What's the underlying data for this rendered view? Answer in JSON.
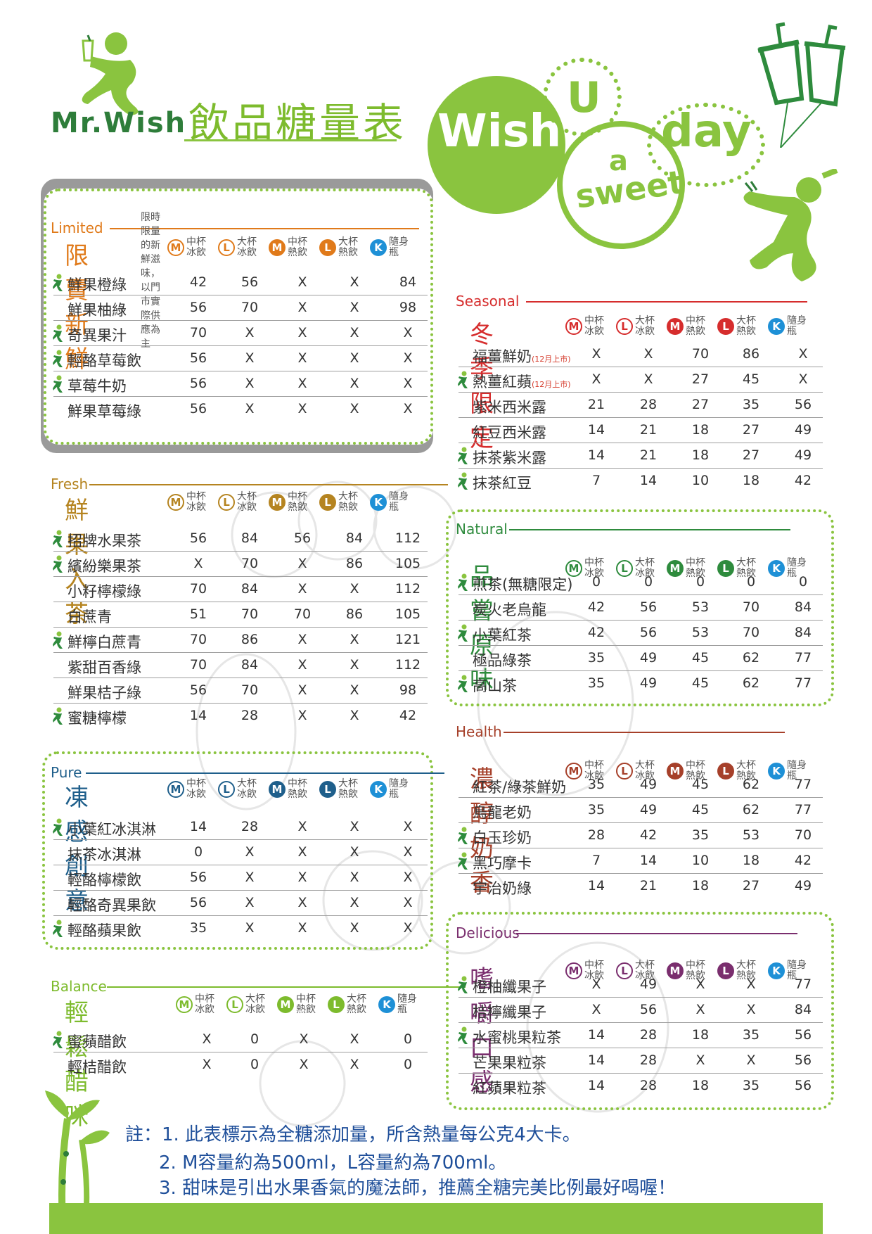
{
  "brand": {
    "logo_text": "Mr.Wish",
    "title": "飲品糖量表"
  },
  "slogan": {
    "wish": "Wish",
    "u": "U",
    "a": "a",
    "sweet": "sweet",
    "day": "day"
  },
  "headers": [
    {
      "badge": "M",
      "line1": "中杯",
      "line2": "冰飲",
      "kind": "outline"
    },
    {
      "badge": "L",
      "line1": "大杯",
      "line2": "冰飲",
      "kind": "outline"
    },
    {
      "badge": "M",
      "line1": "中杯",
      "line2": "熱飲",
      "kind": "solid"
    },
    {
      "badge": "L",
      "line1": "大杯",
      "line2": "熱飲",
      "kind": "solid"
    },
    {
      "badge": "K",
      "line1": "隨身",
      "line2": "瓶",
      "kind": "bottle"
    }
  ],
  "sections": {
    "limited": {
      "en": "Limited",
      "zh": "限賣新鮮",
      "note": "限時限量的新鮮滋味，以門市實際供應為主",
      "color": "#e07a1a",
      "hot_color": "#e07a1a",
      "rows": [
        {
          "name": "鮮果橙綠",
          "leaf": true,
          "values": [
            "42",
            "56",
            "X",
            "X",
            "84"
          ]
        },
        {
          "name": "鮮果柚綠",
          "leaf": false,
          "values": [
            "56",
            "70",
            "X",
            "X",
            "98"
          ]
        },
        {
          "name": "奇異果汁",
          "leaf": true,
          "values": [
            "70",
            "X",
            "X",
            "X",
            "X"
          ]
        },
        {
          "name": "輕酪草莓飲",
          "leaf": true,
          "values": [
            "56",
            "X",
            "X",
            "X",
            "X"
          ]
        },
        {
          "name": "草莓牛奶",
          "leaf": true,
          "values": [
            "56",
            "X",
            "X",
            "X",
            "X"
          ]
        },
        {
          "name": "鮮果草莓綠",
          "leaf": false,
          "values": [
            "56",
            "X",
            "X",
            "X",
            "X"
          ]
        }
      ]
    },
    "fresh": {
      "en": "Fresh",
      "zh": "鮮果入茶",
      "color": "#b58420",
      "hot_color": "#b58420",
      "rows": [
        {
          "name": "招牌水果茶",
          "leaf": true,
          "values": [
            "56",
            "84",
            "56",
            "84",
            "112"
          ]
        },
        {
          "name": "繽紛樂果茶",
          "leaf": true,
          "values": [
            "X",
            "70",
            "X",
            "86",
            "105"
          ]
        },
        {
          "name": "小籽檸檬綠",
          "leaf": false,
          "values": [
            "70",
            "84",
            "X",
            "X",
            "112"
          ]
        },
        {
          "name": "白蔗青",
          "leaf": false,
          "values": [
            "51",
            "70",
            "70",
            "86",
            "105"
          ]
        },
        {
          "name": "鮮檸白蔗青",
          "leaf": true,
          "values": [
            "70",
            "86",
            "X",
            "X",
            "121"
          ]
        },
        {
          "name": "紫甜百香綠",
          "leaf": false,
          "values": [
            "70",
            "84",
            "X",
            "X",
            "112"
          ]
        },
        {
          "name": "鮮果桔子綠",
          "leaf": false,
          "values": [
            "56",
            "70",
            "X",
            "X",
            "98"
          ]
        },
        {
          "name": "蜜糖檸檬",
          "leaf": true,
          "values": [
            "14",
            "28",
            "X",
            "X",
            "42"
          ]
        }
      ]
    },
    "pure": {
      "en": "Pure",
      "zh": "凍感創意",
      "color": "#1f5f8b",
      "hot_color": "#1f5f8b",
      "rows": [
        {
          "name": "小葉紅冰淇淋",
          "leaf": true,
          "values": [
            "14",
            "28",
            "X",
            "X",
            "X"
          ]
        },
        {
          "name": "抹茶冰淇淋",
          "leaf": false,
          "values": [
            "0",
            "X",
            "X",
            "X",
            "X"
          ]
        },
        {
          "name": "輕酪檸檬飲",
          "leaf": false,
          "values": [
            "56",
            "X",
            "X",
            "X",
            "X"
          ]
        },
        {
          "name": "輕酪奇異果飲",
          "leaf": false,
          "values": [
            "56",
            "X",
            "X",
            "X",
            "X"
          ]
        },
        {
          "name": "輕酪蘋果飲",
          "leaf": true,
          "values": [
            "35",
            "X",
            "X",
            "X",
            "X"
          ]
        }
      ]
    },
    "balance": {
      "en": "Balance",
      "zh": "輕鬆醋咪",
      "color": "#7dbb2d",
      "hot_color": "#7dbb2d",
      "rows": [
        {
          "name": "蜜蘋醋飲",
          "leaf": true,
          "values": [
            "X",
            "0",
            "X",
            "X",
            "0"
          ]
        },
        {
          "name": "輕桔醋飲",
          "leaf": false,
          "values": [
            "X",
            "0",
            "X",
            "X",
            "0"
          ]
        }
      ]
    },
    "seasonal": {
      "en": "Seasonal",
      "zh": "冬季限定",
      "color": "#d62d2d",
      "hot_color": "#d62d2d",
      "rows": [
        {
          "name": "福薑鮮奶",
          "tag": "(12月上市)",
          "leaf": false,
          "values": [
            "X",
            "X",
            "70",
            "86",
            "X"
          ]
        },
        {
          "name": "熱薑紅蘋",
          "tag": "(12月上市)",
          "leaf": true,
          "values": [
            "X",
            "X",
            "27",
            "45",
            "X"
          ]
        },
        {
          "name": "紫米西米露",
          "leaf": false,
          "values": [
            "21",
            "28",
            "27",
            "35",
            "56"
          ]
        },
        {
          "name": "紅豆西米露",
          "leaf": false,
          "values": [
            "14",
            "21",
            "18",
            "27",
            "49"
          ]
        },
        {
          "name": "抹茶紫米露",
          "leaf": true,
          "values": [
            "14",
            "21",
            "18",
            "27",
            "49"
          ]
        },
        {
          "name": "抹茶紅豆",
          "leaf": true,
          "values": [
            "7",
            "14",
            "10",
            "18",
            "42"
          ]
        }
      ]
    },
    "natural": {
      "en": "Natural",
      "zh": "品嘗原味",
      "color": "#2e8b3d",
      "hot_color": "#2e8b3d",
      "rows": [
        {
          "name": "煎茶(無糖限定)",
          "leaf": true,
          "values": [
            "0",
            "0",
            "0",
            "0",
            "0"
          ]
        },
        {
          "name": "炭火老烏龍",
          "leaf": false,
          "values": [
            "42",
            "56",
            "53",
            "70",
            "84"
          ]
        },
        {
          "name": "小葉紅茶",
          "leaf": true,
          "values": [
            "42",
            "56",
            "53",
            "70",
            "84"
          ]
        },
        {
          "name": "極品綠茶",
          "leaf": false,
          "values": [
            "35",
            "49",
            "45",
            "62",
            "77"
          ]
        },
        {
          "name": "高山茶",
          "leaf": true,
          "values": [
            "35",
            "49",
            "45",
            "62",
            "77"
          ]
        }
      ]
    },
    "health": {
      "en": "Health",
      "zh": "濃醇奶香",
      "color": "#a6402a",
      "hot_color": "#a6402a",
      "rows": [
        {
          "name": "紅茶/綠茶鮮奶",
          "leaf": false,
          "values": [
            "35",
            "49",
            "45",
            "62",
            "77"
          ]
        },
        {
          "name": "烏龍老奶",
          "leaf": false,
          "values": [
            "35",
            "49",
            "45",
            "62",
            "77"
          ]
        },
        {
          "name": "白玉珍奶",
          "leaf": true,
          "values": [
            "28",
            "42",
            "35",
            "53",
            "70"
          ]
        },
        {
          "name": "黑巧摩卡",
          "leaf": true,
          "values": [
            "7",
            "14",
            "10",
            "18",
            "42"
          ]
        },
        {
          "name": "宇治奶綠",
          "leaf": false,
          "values": [
            "14",
            "21",
            "18",
            "27",
            "49"
          ]
        }
      ]
    },
    "delicious": {
      "en": "Delicious",
      "zh": "嗜嚼口感",
      "color": "#7a2e6e",
      "hot_color": "#7a2e6e",
      "rows": [
        {
          "name": "橙柚纖果子",
          "leaf": true,
          "values": [
            "X",
            "49",
            "X",
            "X",
            "77"
          ]
        },
        {
          "name": "桔檸纖果子",
          "leaf": false,
          "values": [
            "X",
            "56",
            "X",
            "X",
            "84"
          ]
        },
        {
          "name": "水蜜桃果粒茶",
          "leaf": true,
          "values": [
            "14",
            "28",
            "18",
            "35",
            "56"
          ]
        },
        {
          "name": "芒果果粒茶",
          "leaf": false,
          "values": [
            "14",
            "28",
            "X",
            "X",
            "56"
          ]
        },
        {
          "name": "紅蘋果粒茶",
          "leaf": false,
          "values": [
            "14",
            "28",
            "18",
            "35",
            "56"
          ]
        }
      ]
    }
  },
  "footnotes": {
    "prefix": "註：",
    "items": [
      "1. 此表標示為全糖添加量，所含熱量每公克4大卡。",
      "2. M容量約為500ml，L容量約為700ml。",
      "3. 甜味是引出水果香氣的魔法師，推薦全糖完美比例最好喝喔！"
    ]
  },
  "colors": {
    "brand_green": "#8ac43f",
    "dark_green": "#2e7d3a",
    "bottle_blue": "#1e90d6",
    "footnote_blue": "#1f4f9a"
  },
  "icons": [
    "mr-wish-runner-logo",
    "leaf-figure-icon",
    "drink-cup-balloons",
    "sprout-decoration"
  ]
}
